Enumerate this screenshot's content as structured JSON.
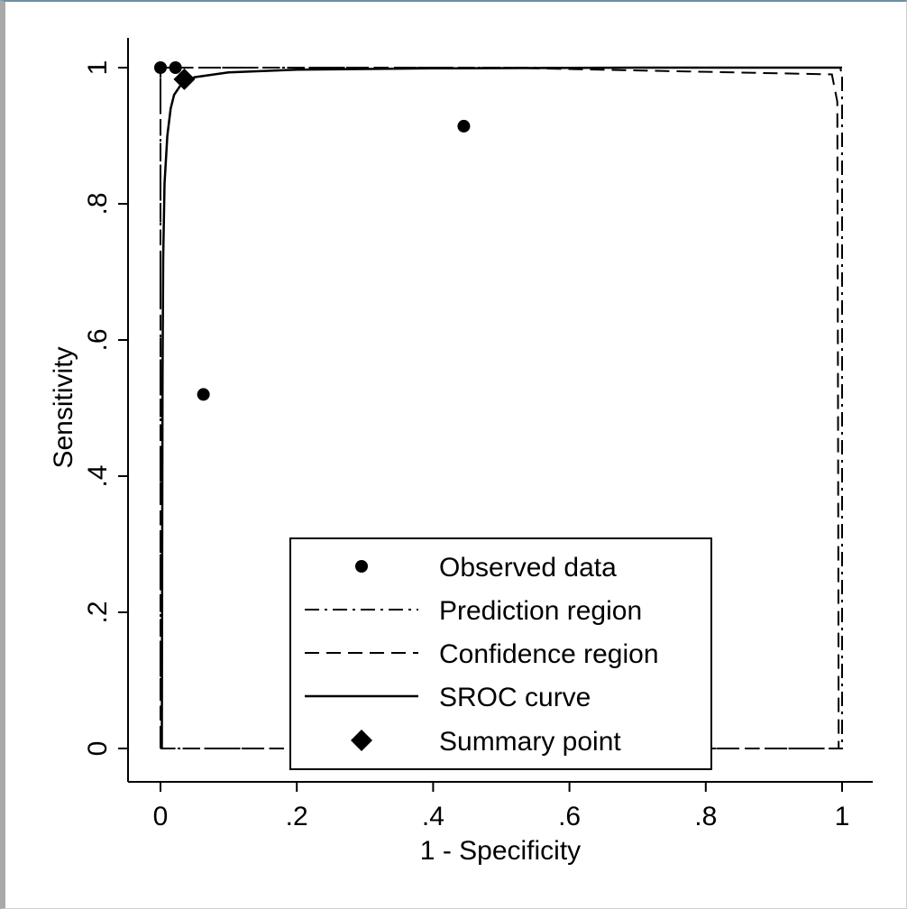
{
  "chart_data": {
    "type": "scatter",
    "title": "",
    "xlabel": "1 - Specificity",
    "ylabel": "Sensitivity",
    "xlim": [
      0,
      1
    ],
    "ylim": [
      0,
      1
    ],
    "x_ticks": [
      {
        "value": 0,
        "label": "0"
      },
      {
        "value": 0.2,
        "label": ".2"
      },
      {
        "value": 0.4,
        "label": ".4"
      },
      {
        "value": 0.6,
        "label": ".6"
      },
      {
        "value": 0.8,
        "label": ".8"
      },
      {
        "value": 1,
        "label": "1"
      }
    ],
    "y_ticks": [
      {
        "value": 0,
        "label": "0"
      },
      {
        "value": 0.2,
        "label": ".2"
      },
      {
        "value": 0.4,
        "label": ".4"
      },
      {
        "value": 0.6,
        "label": ".6"
      },
      {
        "value": 0.8,
        "label": ".8"
      },
      {
        "value": 1,
        "label": "1"
      }
    ],
    "grid": false,
    "legend_position": "bottom-center",
    "observed_data": [
      {
        "x": 0.0,
        "y": 1.0
      },
      {
        "x": 0.022,
        "y": 1.0
      },
      {
        "x": 0.445,
        "y": 0.914
      },
      {
        "x": 0.063,
        "y": 0.52
      }
    ],
    "summary_point": {
      "x": 0.035,
      "y": 0.983
    },
    "sroc_curve": [
      [
        0.002,
        0.0
      ],
      [
        0.0025,
        0.3
      ],
      [
        0.003,
        0.55
      ],
      [
        0.004,
        0.72
      ],
      [
        0.006,
        0.83
      ],
      [
        0.01,
        0.9
      ],
      [
        0.015,
        0.94
      ],
      [
        0.02,
        0.96
      ],
      [
        0.03,
        0.975
      ],
      [
        0.05,
        0.986
      ],
      [
        0.1,
        0.993
      ],
      [
        0.2,
        0.997
      ],
      [
        0.4,
        0.999
      ],
      [
        0.7,
        1.0
      ],
      [
        1.0,
        1.0
      ]
    ],
    "prediction_region": [
      [
        0.0,
        0.0
      ],
      [
        0.0,
        1.0
      ],
      [
        0.5,
        1.0
      ],
      [
        0.997,
        1.0
      ],
      [
        1.0,
        0.99
      ],
      [
        1.0,
        0.5
      ],
      [
        1.0,
        0.0
      ],
      [
        0.5,
        0.0
      ],
      [
        0.0,
        0.0
      ]
    ],
    "confidence_region": [
      [
        0.0,
        0.01
      ],
      [
        0.0,
        0.8
      ],
      [
        0.0,
        1.0
      ],
      [
        0.5,
        1.0
      ],
      [
        0.985,
        0.99
      ],
      [
        0.993,
        0.95
      ],
      [
        0.994,
        0.5
      ],
      [
        0.995,
        0.0
      ],
      [
        0.5,
        0.0
      ],
      [
        0.0,
        0.0
      ]
    ],
    "legend": [
      {
        "key": "observed",
        "label": "Observed data"
      },
      {
        "key": "prediction",
        "label": "Prediction region"
      },
      {
        "key": "confidence",
        "label": "Confidence region"
      },
      {
        "key": "sroc",
        "label": "SROC curve"
      },
      {
        "key": "summary",
        "label": "Summary point"
      }
    ]
  }
}
